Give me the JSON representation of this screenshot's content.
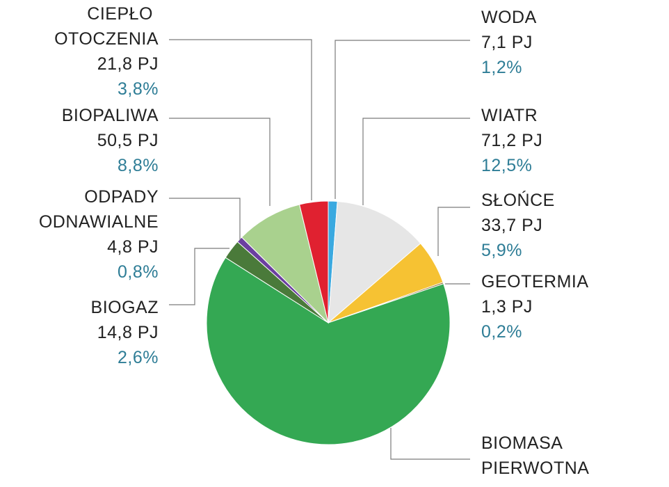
{
  "chart_data": {
    "type": "pie",
    "unit": "PJ",
    "slices": [
      {
        "label": [
          "WODA"
        ],
        "value_text": "7,1 PJ",
        "pct_text": "1,2%",
        "value": 7.1,
        "pct": 1.2,
        "color": "#3aa9e0"
      },
      {
        "label": [
          "WIATR"
        ],
        "value_text": "71,2 PJ",
        "pct_text": "12,5%",
        "value": 71.2,
        "pct": 12.5,
        "color": "#e6e6e6"
      },
      {
        "label": [
          "SŁOŃCE"
        ],
        "value_text": "33,7 PJ",
        "pct_text": "5,9%",
        "value": 33.7,
        "pct": 5.9,
        "color": "#f6c233"
      },
      {
        "label": [
          "GEOTERMIA"
        ],
        "value_text": "1,3 PJ",
        "pct_text": "0,2%",
        "value": 1.3,
        "pct": 0.2,
        "color": "#8a6a2e"
      },
      {
        "label": [
          "BIOMASA",
          "PIERWOTNA"
        ],
        "value_text": "",
        "pct_text": "",
        "value": null,
        "pct": 64.2,
        "color": "#34a853"
      },
      {
        "label": [
          "BIOGAZ"
        ],
        "value_text": "14,8 PJ",
        "pct_text": "2,6%",
        "value": 14.8,
        "pct": 2.6,
        "color": "#4a7a3a"
      },
      {
        "label": [
          "ODPADY",
          "ODNAWIALNE"
        ],
        "value_text": "4,8 PJ",
        "pct_text": "0,8%",
        "value": 4.8,
        "pct": 0.8,
        "color": "#6b3fa0"
      },
      {
        "label": [
          "BIOPALIWA"
        ],
        "value_text": "50,5 PJ",
        "pct_text": "8,8%",
        "value": 50.5,
        "pct": 8.8,
        "color": "#a9d18e"
      },
      {
        "label": [
          "CIEPŁO",
          "OTOCZENIA"
        ],
        "value_text": "21,8 PJ",
        "pct_text": "3,8%",
        "value": 21.8,
        "pct": 3.8,
        "color": "#e02130"
      }
    ]
  }
}
